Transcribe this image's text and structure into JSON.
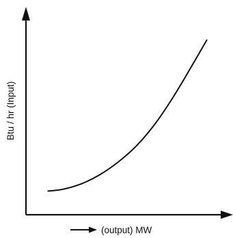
{
  "chart_data": {
    "type": "line",
    "title": "",
    "xlabel": "(output) MW",
    "ylabel": "Btu / hr (Input)",
    "xlim": [
      0,
      100
    ],
    "ylim": [
      0,
      100
    ],
    "grid": false,
    "legend": "none",
    "x_tick_labels": [],
    "y_tick_labels": [],
    "series": [
      {
        "x": [
          12,
          20,
          30,
          40,
          50,
          60,
          70,
          80,
          90,
          98
        ],
        "y": [
          13,
          14,
          17,
          22,
          29,
          38,
          50,
          65,
          82,
          96
        ]
      }
    ]
  },
  "colors": {
    "axis": "#111111",
    "curve": "#111111"
  }
}
